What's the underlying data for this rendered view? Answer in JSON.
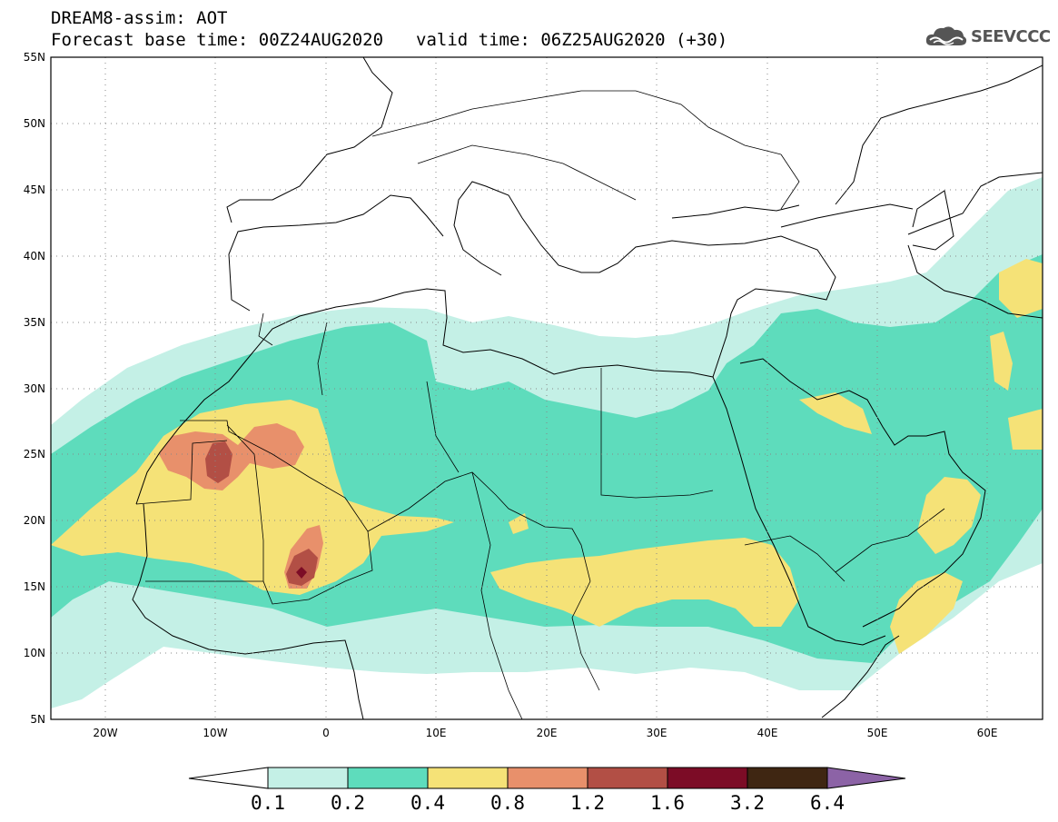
{
  "header": {
    "line1": "DREAM8-assim: AOT",
    "base_time": "Forecast base time: 00Z24AUG2020",
    "valid_time": "valid time: 06Z25AUG2020 (+30)"
  },
  "logo": {
    "text": "SEEVCCC",
    "icon": "cloud-icon"
  },
  "map": {
    "lon_range": [
      -25,
      65
    ],
    "lat_range": [
      5,
      55
    ],
    "lat_labels": [
      "55N",
      "50N",
      "45N",
      "40N",
      "35N",
      "30N",
      "25N",
      "20N",
      "15N",
      "10N",
      "5N"
    ],
    "lon_labels": [
      "20W",
      "10W",
      "0",
      "10E",
      "20E",
      "30E",
      "40E",
      "50E",
      "60E"
    ]
  },
  "colorbar": {
    "thresholds": [
      "0.1",
      "0.2",
      "0.4",
      "0.8",
      "1.2",
      "1.6",
      "3.2",
      "6.4"
    ],
    "colors": [
      "#ffffff",
      "#c4f0e6",
      "#5edcbc",
      "#f5e277",
      "#e8906b",
      "#b24f45",
      "#7c0c26",
      "#3f2612",
      "#8c63a6"
    ]
  },
  "aot_colors": {
    "c1": "#c4f0e6",
    "c2": "#5edcbc",
    "c3": "#f5e277",
    "c4": "#e8906b",
    "c5": "#b24f45",
    "c6": "#7c0c26"
  }
}
